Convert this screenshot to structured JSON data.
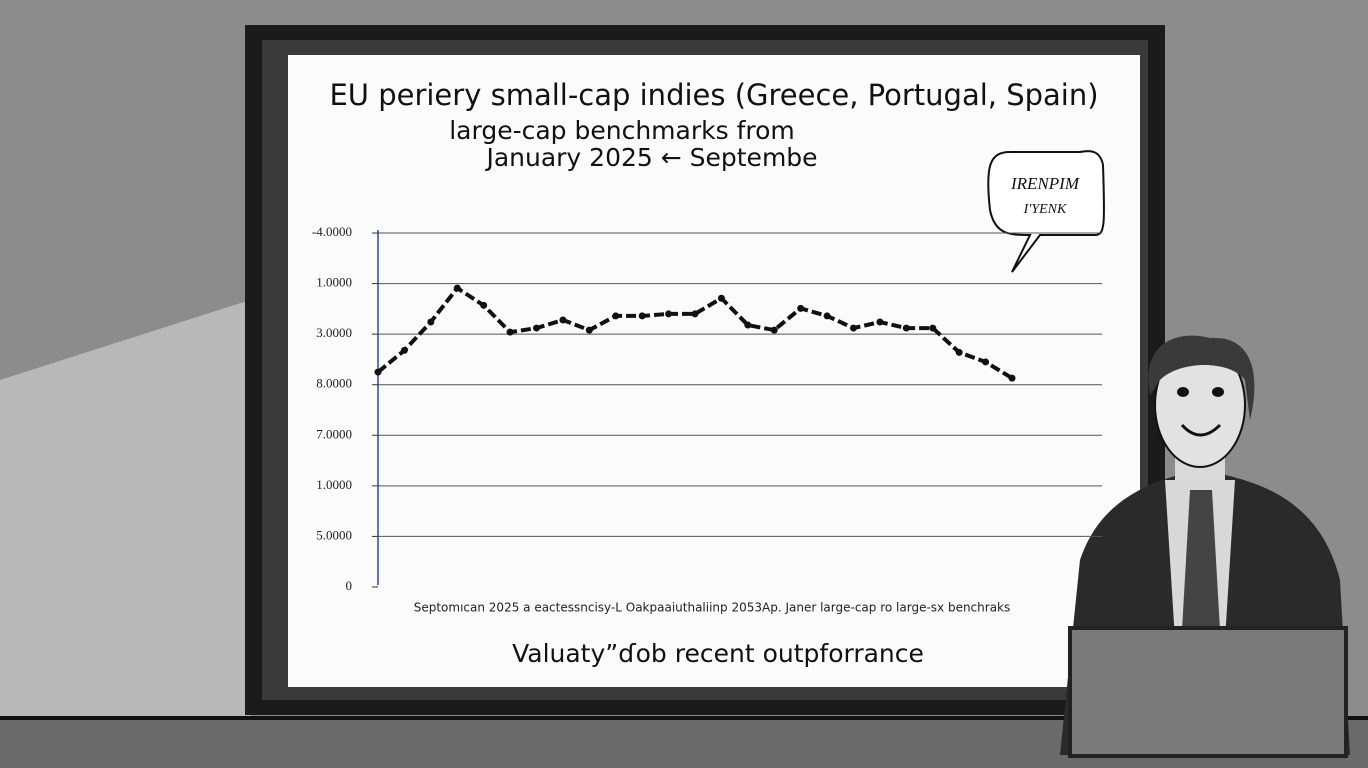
{
  "chart_data": {
    "type": "line",
    "title": "EU periery small-cap indies (Greece, Portugal, Spain)",
    "subtitle": [
      "large-cap benchmarks from",
      "January 2025 ← Septembe"
    ],
    "x_label": "Septomıcan 2025 a eactessncisy-L Oakpaaiuthaliinp 2053Ap. Janer large-cap ro large-sx benchraks",
    "caption": "Valuaty”ɗob recent outpforrance",
    "annotation": [
      "IRENPIM",
      "I'YENK"
    ],
    "categories": [
      null,
      null,
      null,
      null,
      null,
      null,
      null,
      null,
      null,
      null,
      null,
      null,
      null,
      null,
      null,
      null,
      null,
      null,
      null,
      null,
      null,
      null,
      null,
      null,
      null
    ],
    "series": [
      {
        "color": "#111111",
        "values": [
          4.25,
          4.68,
          5.24,
          5.91,
          5.57,
          5.04,
          5.12,
          5.28,
          5.08,
          5.36,
          5.36,
          5.4,
          5.4,
          5.71,
          5.18,
          5.08,
          5.51,
          5.36,
          5.12,
          5.24,
          5.12,
          5.12,
          4.64,
          4.45,
          4.13
        ]
      }
    ],
    "ylim": [
      0,
      7
    ],
    "yticks": [
      {
        "value": 7,
        "label": "-4.0000"
      },
      {
        "value": 6,
        "label": "1.0000"
      },
      {
        "value": 5,
        "label": "3.0000"
      },
      {
        "value": 4,
        "label": "8.0000"
      },
      {
        "value": 3,
        "label": "7.0000"
      },
      {
        "value": 2,
        "label": "1.0000"
      },
      {
        "value": 1,
        "label": "5.0000"
      },
      0
    ],
    "grid": true
  }
}
